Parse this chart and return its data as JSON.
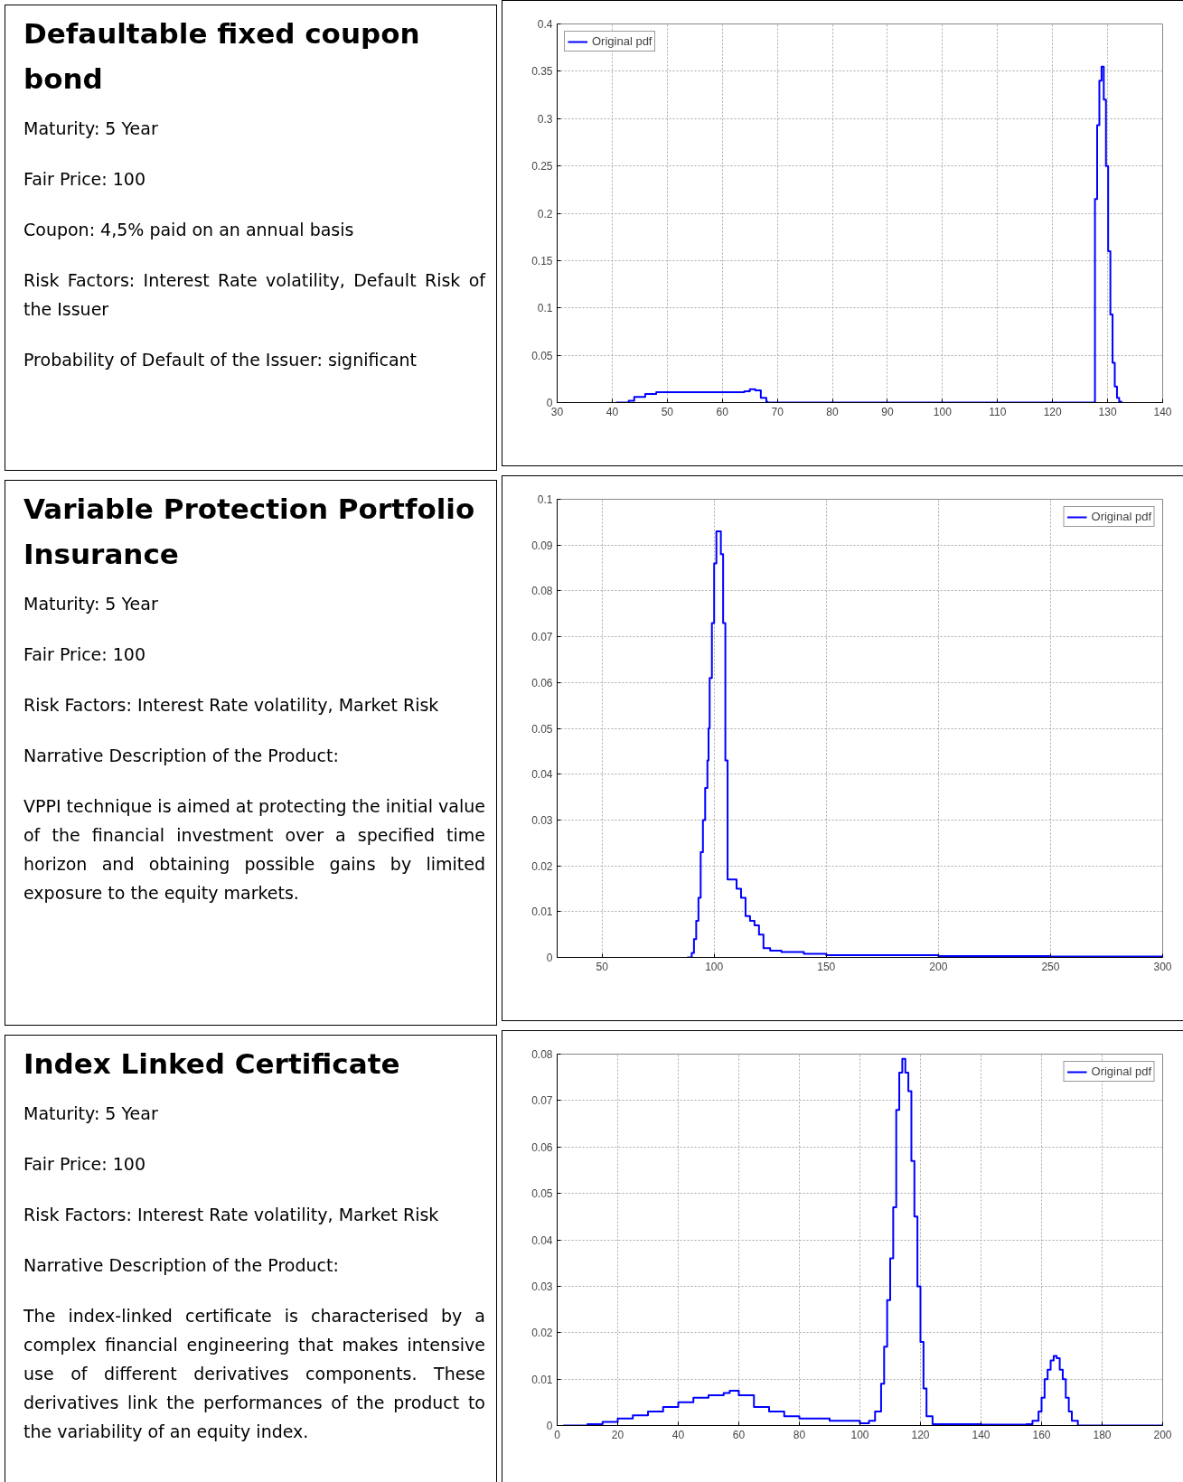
{
  "chart_data": [
    {
      "type": "other",
      "title": "Defaultable fixed coupon bond",
      "annotations": [
        "Maturity: 5 Year",
        "Fair Price: 100",
        "Coupon: 4,5% paid on an annual basis",
        "Risk Factors: Interest Rate volatility, Default Risk of the Issuer",
        "Probability of Default of the Issuer: significant"
      ]
    },
    {
      "type": "step",
      "xlim": [
        30,
        140
      ],
      "xticks": [
        30,
        40,
        50,
        60,
        70,
        80,
        90,
        100,
        110,
        120,
        130,
        140
      ],
      "ylim": [
        0,
        0.4
      ],
      "yticks": [
        0,
        0.05,
        0.1,
        0.15,
        0.2,
        0.25,
        0.3,
        0.35,
        0.4
      ],
      "grid": true,
      "legend": "top left",
      "series": [
        {
          "name": "Original pdf",
          "color": "#0000ff",
          "x": [
            40.7,
            43,
            44,
            46,
            48,
            52,
            56,
            60,
            64,
            65,
            66,
            67,
            68,
            68.2,
            127.7,
            128.1,
            128.5,
            128.9,
            129.3,
            129.7,
            130.1,
            130.5,
            130.9,
            131.3,
            131.7,
            132.1,
            132.5
          ],
          "values": [
            0,
            0.002,
            0.006,
            0.009,
            0.011,
            0.011,
            0.011,
            0.011,
            0.012,
            0.014,
            0.013,
            0.005,
            0.001,
            0,
            0.215,
            0.293,
            0.34,
            0.355,
            0.32,
            0.25,
            0.16,
            0.093,
            0.042,
            0.017,
            0.005,
            0.001,
            0
          ]
        }
      ]
    },
    {
      "type": "other",
      "title": "Variable Protection Portfolio Insurance",
      "annotations": [
        "Maturity: 5 Year",
        "Fair Price: 100",
        "Risk Factors: Interest Rate volatility, Market Risk",
        "Narrative Description of the Product:",
        "VPPI technique is aimed at protecting the initial value of the financial investment over a specified time horizon and obtaining possible gains by limited exposure to the equity markets."
      ]
    },
    {
      "type": "step",
      "xlim": [
        30,
        300
      ],
      "xticks": [
        50,
        100,
        150,
        200,
        250,
        300
      ],
      "ylim": [
        0,
        0.1
      ],
      "yticks": [
        0,
        0.01,
        0.02,
        0.03,
        0.04,
        0.05,
        0.06,
        0.07,
        0.08,
        0.09,
        0.1
      ],
      "grid": true,
      "legend": "top right",
      "series": [
        {
          "name": "Original pdf",
          "color": "#0000ff",
          "x": [
            88,
            90,
            91,
            92,
            93,
            94,
            95,
            96,
            97,
            97.5,
            98,
            99,
            100,
            101,
            102,
            103,
            104,
            105,
            106,
            108,
            110,
            112,
            114,
            116,
            118,
            120,
            122,
            125,
            130,
            140,
            150,
            200,
            250,
            300
          ],
          "values": [
            0,
            0.001,
            0.004,
            0.008,
            0.013,
            0.023,
            0.03,
            0.037,
            0.043,
            0.05,
            0.061,
            0.073,
            0.086,
            0.093,
            0.093,
            0.088,
            0.073,
            0.043,
            0.017,
            0.017,
            0.015,
            0.013,
            0.009,
            0.008,
            0.007,
            0.005,
            0.002,
            0.0015,
            0.0012,
            0.0008,
            0.0005,
            0.0003,
            0.0002,
            0
          ]
        }
      ]
    },
    {
      "type": "other",
      "title": "Index Linked Certificate",
      "annotations": [
        "Maturity: 5 Year",
        "Fair Price: 100",
        "Risk Factors: Interest Rate volatility, Market Risk",
        "Narrative Description of the Product:",
        "The index-linked certificate is characterised by a complex financial engineering that makes intensive use of different derivatives components. These derivatives link the performances of the product to the variability of an equity index."
      ]
    },
    {
      "type": "step",
      "xlim": [
        0,
        200
      ],
      "xticks": [
        0,
        20,
        40,
        60,
        80,
        100,
        120,
        140,
        160,
        180,
        200
      ],
      "ylim": [
        0,
        0.08
      ],
      "yticks": [
        0,
        0.01,
        0.02,
        0.03,
        0.04,
        0.05,
        0.06,
        0.07,
        0.08
      ],
      "grid": true,
      "legend": "top right",
      "series": [
        {
          "name": "Original pdf",
          "color": "#0000ff",
          "x": [
            2,
            10,
            15,
            20,
            25,
            30,
            35,
            40,
            45,
            50,
            55,
            57,
            60,
            65,
            70,
            75,
            80,
            90,
            100,
            103,
            105,
            107,
            108,
            109,
            110,
            111,
            112,
            113,
            114,
            115,
            116,
            117,
            118,
            119,
            120,
            121,
            122,
            124,
            140,
            155,
            157,
            159,
            160,
            161,
            162,
            163,
            164,
            165,
            166,
            167,
            168,
            169,
            170,
            172,
            200
          ],
          "values": [
            0,
            0.0003,
            0.0008,
            0.0015,
            0.0022,
            0.003,
            0.004,
            0.005,
            0.006,
            0.0065,
            0.007,
            0.0075,
            0.0065,
            0.004,
            0.003,
            0.002,
            0.0015,
            0.001,
            0.0005,
            0.001,
            0.003,
            0.009,
            0.017,
            0.027,
            0.036,
            0.047,
            0.068,
            0.076,
            0.079,
            0.076,
            0.072,
            0.057,
            0.045,
            0.03,
            0.018,
            0.008,
            0.002,
            0.0003,
            0.0002,
            0.0003,
            0.001,
            0.003,
            0.006,
            0.01,
            0.012,
            0.014,
            0.015,
            0.0145,
            0.012,
            0.01,
            0.006,
            0.003,
            0.001,
            0,
            0
          ]
        }
      ]
    }
  ]
}
